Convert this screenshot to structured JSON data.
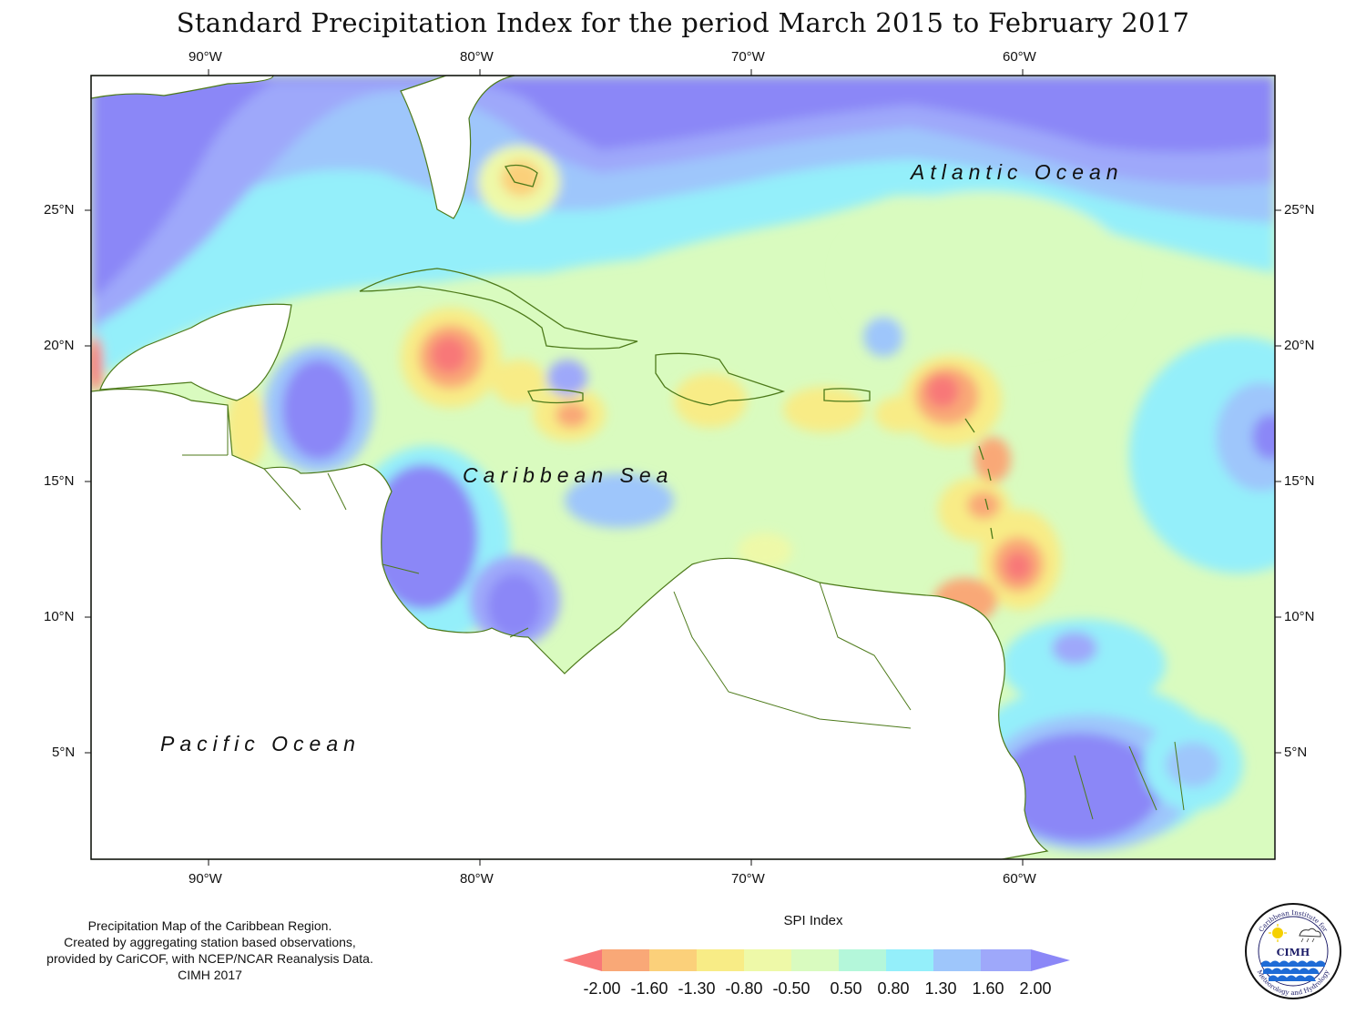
{
  "title": "Standard Precipitation Index for the period March 2015 to February 2017",
  "map": {
    "lon_labels": [
      "90°W",
      "80°W",
      "70°W",
      "60°W"
    ],
    "lat_labels": [
      "25°N",
      "20°N",
      "15°N",
      "10°N",
      "5°N"
    ],
    "region_labels": {
      "atlantic": "Atlantic Ocean",
      "caribbean": "Caribbean Sea",
      "pacific": "Pacific Ocean"
    },
    "extent": {
      "lon_min": -94.4,
      "lon_max": -51.0,
      "lat_min": 1.0,
      "lat_max": 29.7
    }
  },
  "legend": {
    "title": "SPI Index",
    "ticks": [
      "-2.00",
      "-1.60",
      "-1.30",
      "-0.80",
      "-0.50",
      "0.50",
      "0.80",
      "1.30",
      "1.60",
      "2.00"
    ],
    "colors": [
      "#f87878",
      "#f9a877",
      "#fbd07a",
      "#f8ec86",
      "#eef9a8",
      "#d9fbbf",
      "#b4f7da",
      "#94effa",
      "#9ec6fb",
      "#9ea8fa",
      "#8b87f7"
    ]
  },
  "credits": {
    "line1": "Precipitation Map of the Caribbean Region.",
    "line2": "Created by aggregating station based observations,",
    "line3": "provided by CariCOF, with NCEP/NCAR Reanalysis Data.",
    "line4": "CIMH 2017"
  },
  "logo": {
    "name": "CIMH",
    "top_text": "Caribbean Institute for",
    "bottom_text": "Meteorology and Hydrology"
  }
}
